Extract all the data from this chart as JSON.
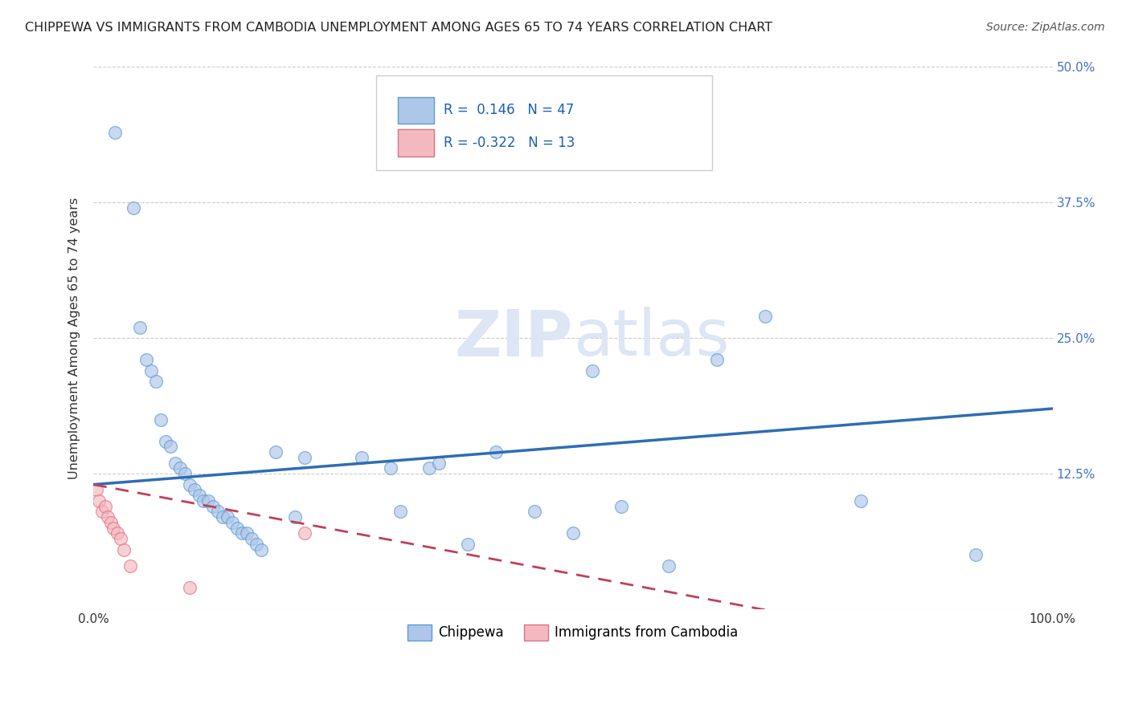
{
  "title": "CHIPPEWA VS IMMIGRANTS FROM CAMBODIA UNEMPLOYMENT AMONG AGES 65 TO 74 YEARS CORRELATION CHART",
  "source": "Source: ZipAtlas.com",
  "ylabel": "Unemployment Among Ages 65 to 74 years",
  "xlim": [
    0.0,
    1.0
  ],
  "ylim": [
    0.0,
    0.5
  ],
  "xticks": [
    0.0,
    1.0
  ],
  "xticklabels": [
    "0.0%",
    "100.0%"
  ],
  "yticks": [
    0.0,
    0.125,
    0.25,
    0.375,
    0.5
  ],
  "yticklabels": [
    "",
    "12.5%",
    "25.0%",
    "37.5%",
    "50.0%"
  ],
  "background_color": "#ffffff",
  "grid_color": "#cccccc",
  "chippewa_color": "#aec6e8",
  "chippewa_edge_color": "#5b9bd5",
  "cambodia_color": "#f4b8c1",
  "cambodia_edge_color": "#e07080",
  "trend_blue_color": "#2e6db4",
  "trend_red_color": "#c0405a",
  "legend_R1": "0.146",
  "legend_N1": "47",
  "legend_R2": "-0.322",
  "legend_N2": "13",
  "chippewa_x": [
    0.022,
    0.042,
    0.048,
    0.055,
    0.06,
    0.065,
    0.07,
    0.075,
    0.08,
    0.085,
    0.09,
    0.095,
    0.1,
    0.105,
    0.11,
    0.115,
    0.12,
    0.125,
    0.13,
    0.135,
    0.14,
    0.145,
    0.15,
    0.155,
    0.16,
    0.165,
    0.17,
    0.175,
    0.19,
    0.21,
    0.22,
    0.28,
    0.31,
    0.32,
    0.35,
    0.36,
    0.39,
    0.42,
    0.46,
    0.5,
    0.52,
    0.55,
    0.6,
    0.65,
    0.7,
    0.8,
    0.92
  ],
  "chippewa_y": [
    0.44,
    0.37,
    0.26,
    0.23,
    0.22,
    0.21,
    0.175,
    0.155,
    0.15,
    0.135,
    0.13,
    0.125,
    0.115,
    0.11,
    0.105,
    0.1,
    0.1,
    0.095,
    0.09,
    0.085,
    0.085,
    0.08,
    0.075,
    0.07,
    0.07,
    0.065,
    0.06,
    0.055,
    0.145,
    0.085,
    0.14,
    0.14,
    0.13,
    0.09,
    0.13,
    0.135,
    0.06,
    0.145,
    0.09,
    0.07,
    0.22,
    0.095,
    0.04,
    0.23,
    0.27,
    0.1,
    0.05
  ],
  "cambodia_x": [
    0.003,
    0.006,
    0.009,
    0.012,
    0.015,
    0.018,
    0.021,
    0.025,
    0.028,
    0.032,
    0.038,
    0.1,
    0.22
  ],
  "cambodia_y": [
    0.11,
    0.1,
    0.09,
    0.095,
    0.085,
    0.08,
    0.075,
    0.07,
    0.065,
    0.055,
    0.04,
    0.02,
    0.07
  ],
  "marker_size": 130,
  "alpha": 0.65,
  "watermark_zip": "ZIP",
  "watermark_atlas": "atlas",
  "watermark_color": "#dce6f5",
  "watermark_fontsize": 58
}
